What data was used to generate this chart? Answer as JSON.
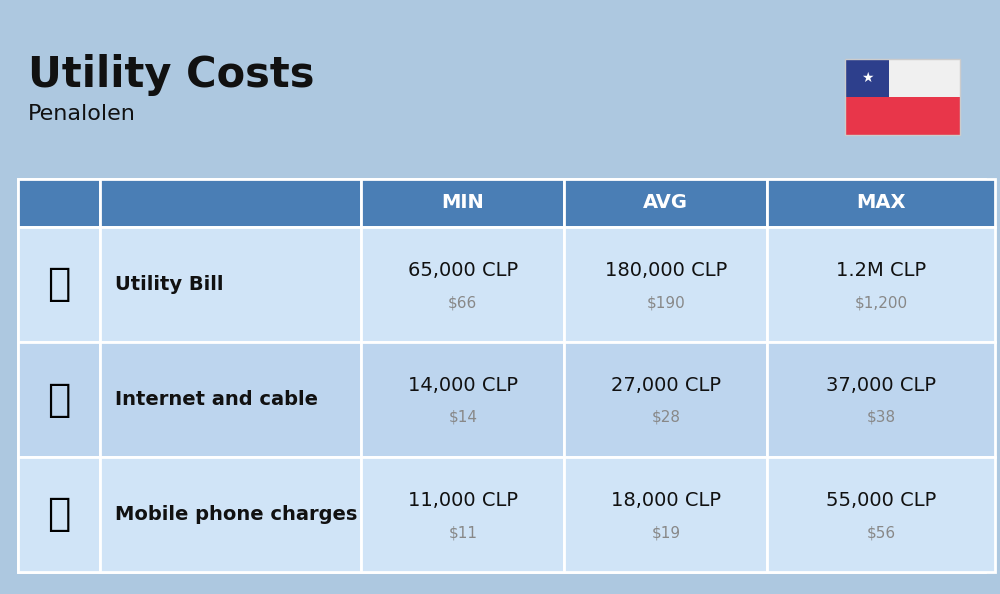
{
  "title": "Utility Costs",
  "subtitle": "Penalolen",
  "background_color": "#adc8e0",
  "header_color": "#4a7eb5",
  "header_text_color": "#ffffff",
  "row_bg_colors": [
    "#d0e4f7",
    "#bdd5ee"
  ],
  "icon_bg_color": "#adc8e0",
  "border_color": "#ffffff",
  "col_headers": [
    "MIN",
    "AVG",
    "MAX"
  ],
  "rows": [
    {
      "label": "Utility Bill",
      "min_clp": "65,000 CLP",
      "min_usd": "$66",
      "avg_clp": "180,000 CLP",
      "avg_usd": "$190",
      "max_clp": "1.2M CLP",
      "max_usd": "$1,200"
    },
    {
      "label": "Internet and cable",
      "min_clp": "14,000 CLP",
      "min_usd": "$14",
      "avg_clp": "27,000 CLP",
      "avg_usd": "$28",
      "max_clp": "37,000 CLP",
      "max_usd": "$38"
    },
    {
      "label": "Mobile phone charges",
      "min_clp": "11,000 CLP",
      "min_usd": "$11",
      "avg_clp": "18,000 CLP",
      "avg_usd": "$19",
      "max_clp": "55,000 CLP",
      "max_usd": "$56"
    }
  ],
  "title_fontsize": 30,
  "subtitle_fontsize": 16,
  "label_fontsize": 14,
  "value_fontsize": 14,
  "usd_fontsize": 11,
  "header_fontsize": 14,
  "flag_colors": {
    "blue": "#2d3f8c",
    "white_top": "#f0f0f0",
    "red": "#e8364a"
  }
}
